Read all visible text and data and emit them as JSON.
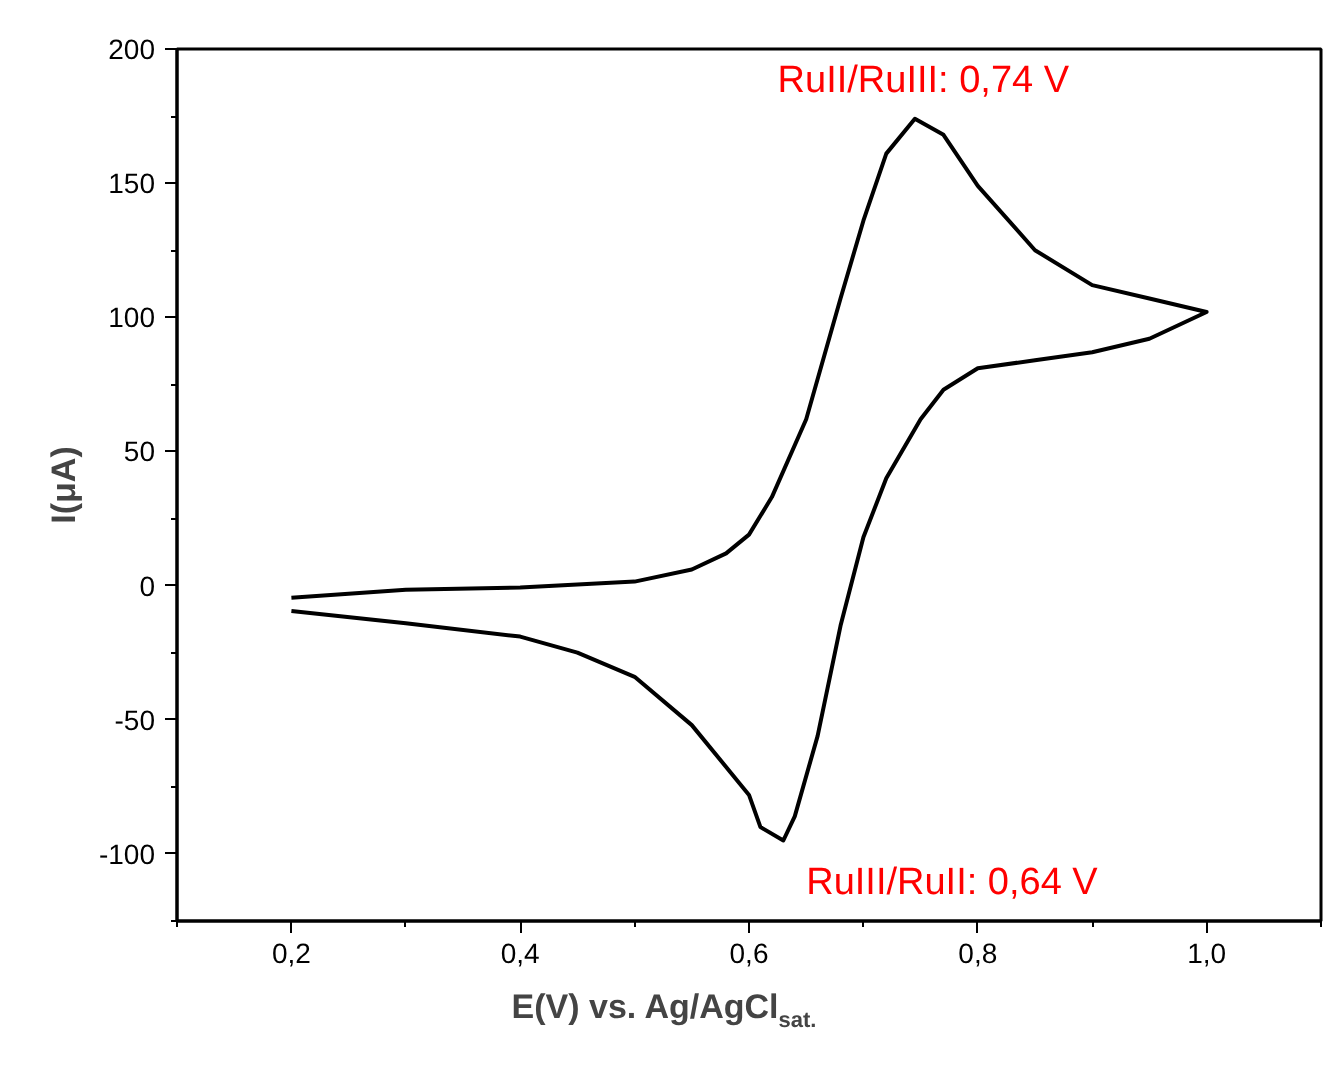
{
  "chart_data": {
    "type": "line",
    "xlabel": "E(V) vs. Ag/AgCl$_{sat.}$",
    "ylabel": "I(μA)",
    "xlim": [
      0.1,
      1.1
    ],
    "ylim": [
      -125,
      200
    ],
    "xticks": [
      {
        "value": 0.2,
        "label": "0,2"
      },
      {
        "value": 0.4,
        "label": "0,4"
      },
      {
        "value": 0.6,
        "label": "0,6"
      },
      {
        "value": 0.8,
        "label": "0,8"
      },
      {
        "value": 1.0,
        "label": "1,0"
      }
    ],
    "yticks": [
      -100,
      -50,
      0,
      50,
      100,
      150,
      200
    ],
    "grid": false,
    "marker": "none",
    "line_style": "solid",
    "series": [
      {
        "color": "#000000",
        "x": [
          0.2,
          0.3,
          0.4,
          0.5,
          0.55,
          0.58,
          0.6,
          0.62,
          0.65,
          0.68,
          0.7,
          0.72,
          0.745,
          0.77,
          0.8,
          0.85,
          0.9,
          0.95,
          1.0,
          0.95,
          0.9,
          0.85,
          0.8,
          0.77,
          0.75,
          0.72,
          0.7,
          0.68,
          0.66,
          0.64,
          0.63,
          0.61,
          0.6,
          0.55,
          0.5,
          0.45,
          0.4,
          0.3,
          0.2
        ],
        "values": [
          -4.5,
          -1.5,
          -0.7,
          1.5,
          6,
          12,
          19,
          33,
          62,
          107,
          136,
          161,
          174,
          168,
          149,
          125,
          112,
          107,
          102,
          92,
          87,
          84,
          81,
          73,
          62,
          40,
          18,
          -15,
          -56,
          -86,
          -95,
          -90,
          -78,
          -52,
          -34,
          -25,
          -19,
          -14,
          -9.5
        ]
      }
    ],
    "annotations": [
      {
        "text": "RuII/RuIII: 0,74 V",
        "x": 0.745,
        "y": 174
      },
      {
        "text": "RuIII/RuII: 0,64 V",
        "x": 0.63,
        "y": -95
      }
    ]
  }
}
